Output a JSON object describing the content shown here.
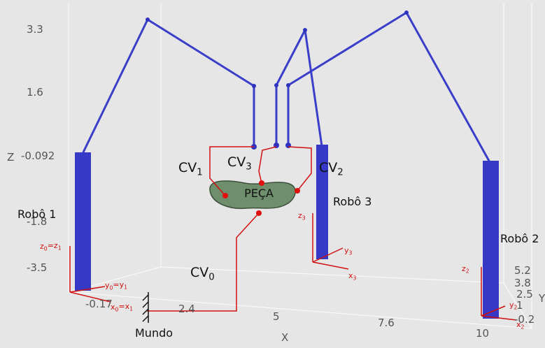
{
  "axes": {
    "z": {
      "label": "Z",
      "ticks": [
        "3.3",
        "1.6",
        "-0.092",
        "-1.8",
        "-3.5"
      ]
    },
    "x": {
      "label": "X",
      "ticks": [
        "-0.17",
        "2.4",
        "5",
        "7.6",
        "10"
      ]
    },
    "y": {
      "label": "Y",
      "ticks": [
        "-0.2",
        "1",
        "2.5",
        "3.8",
        "5.2"
      ]
    }
  },
  "robots": [
    "Robô 1",
    "Robô 2",
    "Robô 3"
  ],
  "world": "Mundo",
  "part": "PEÇA",
  "tools": [
    [
      {
        "t": "CV",
        "s": "0"
      }
    ],
    [
      {
        "t": "CV",
        "s": "1"
      }
    ],
    [
      {
        "t": "CV",
        "s": "2"
      }
    ],
    [
      {
        "t": "CV",
        "s": "3"
      }
    ]
  ],
  "frames": [
    [
      {
        "t": "z",
        "s": "0"
      },
      {
        "t": "=z",
        "s": "1"
      }
    ],
    [
      {
        "t": "y",
        "s": "0"
      },
      {
        "t": "=y",
        "s": "1"
      }
    ],
    [
      {
        "t": "x",
        "s": "0"
      },
      {
        "t": "=x",
        "s": "1"
      }
    ],
    [
      {
        "t": "z",
        "s": "3"
      }
    ],
    [
      {
        "t": "y",
        "s": "3"
      }
    ],
    [
      {
        "t": "x",
        "s": "3"
      }
    ],
    [
      {
        "t": "z",
        "s": "2"
      }
    ],
    [
      {
        "t": "y",
        "s": "2"
      }
    ],
    [
      {
        "t": "x",
        "s": "2"
      }
    ]
  ]
}
